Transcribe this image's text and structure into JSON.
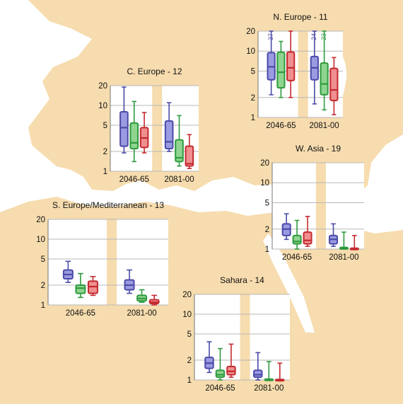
{
  "colors": {
    "ocean": "#ffffff",
    "land": "#f6dcae",
    "plot_bg": "#ffffff",
    "band": "#f6dcae",
    "grid": "#b8b8b8",
    "blue": "#4b4ba8",
    "blue_fill": "#9a9be0",
    "green": "#2e9b3f",
    "green_fill": "#8fd48f",
    "red": "#c42a2f",
    "red_fill": "#ef8f8f"
  },
  "chart_data": [
    {
      "id": "n-europe",
      "type": "box",
      "title": "N. Europe - 11",
      "y_scale": "log",
      "ylim": [
        1,
        20
      ],
      "yticks": [
        1,
        2,
        5,
        10,
        20
      ],
      "categories": [
        "2046-65",
        "2081-00"
      ],
      "series": [
        {
          "color": "blue",
          "boxes": [
            {
              "min": 2.2,
              "q1": 3.7,
              "median": 5.8,
              "q3": 9.5,
              "max": 20
            },
            {
              "min": 1.6,
              "q1": 3.7,
              "median": 5.6,
              "q3": 8.3,
              "max": 20
            }
          ]
        },
        {
          "color": "green",
          "boxes": [
            {
              "min": 2.0,
              "q1": 2.8,
              "median": 4.8,
              "q3": 9.6,
              "max": 14
            },
            {
              "min": 1.3,
              "q1": 2.2,
              "median": 3.2,
              "q3": 6.6,
              "max": 20
            }
          ]
        },
        {
          "color": "red",
          "boxes": [
            {
              "min": 2.0,
              "q1": 3.6,
              "median": 5.6,
              "q3": 9.7,
              "max": 20
            },
            {
              "min": 1.1,
              "q1": 1.8,
              "median": 2.6,
              "q3": 5.5,
              "max": 8
            }
          ]
        }
      ],
      "labels": [
        {
          "series": 0,
          "cat": 0,
          "text": "37"
        },
        {
          "series": 0,
          "cat": 1,
          "text": "24"
        },
        {
          "series": 1,
          "cat": 1,
          "text": "23"
        }
      ]
    },
    {
      "id": "c-europe",
      "type": "box",
      "title": "C. Europe - 12",
      "y_scale": "log",
      "ylim": [
        1,
        20
      ],
      "yticks": [
        1,
        2,
        5,
        10,
        20
      ],
      "categories": [
        "2046-65",
        "2081-00"
      ],
      "series": [
        {
          "color": "blue",
          "boxes": [
            {
              "min": 1.9,
              "q1": 2.4,
              "median": 4.6,
              "q3": 8.0,
              "max": 19
            },
            {
              "min": 2.0,
              "q1": 2.2,
              "median": 2.8,
              "q3": 5.8,
              "max": 11
            }
          ]
        },
        {
          "color": "green",
          "boxes": [
            {
              "min": 1.4,
              "q1": 2.2,
              "median": 2.7,
              "q3": 5.4,
              "max": 11.5
            },
            {
              "min": 1.2,
              "q1": 1.4,
              "median": 1.6,
              "q3": 3.0,
              "max": 7.0
            }
          ]
        },
        {
          "color": "red",
          "boxes": [
            {
              "min": 1.9,
              "q1": 2.3,
              "median": 3.2,
              "q3": 4.6,
              "max": 7.8
            },
            {
              "min": 1.1,
              "q1": 1.2,
              "median": 1.3,
              "q3": 2.4,
              "max": 3.6
            }
          ]
        }
      ]
    },
    {
      "id": "w-asia",
      "type": "box",
      "title": "W. Asia - 19",
      "y_scale": "log",
      "ylim": [
        1,
        20
      ],
      "yticks": [
        1,
        2,
        5,
        10,
        20
      ],
      "categories": [
        "2046-65",
        "2081-00"
      ],
      "series": [
        {
          "color": "blue",
          "boxes": [
            {
              "min": 1.4,
              "q1": 1.6,
              "median": 2.0,
              "q3": 2.4,
              "max": 3.4
            },
            {
              "min": 1.1,
              "q1": 1.2,
              "median": 1.4,
              "q3": 1.6,
              "max": 2.4
            }
          ]
        },
        {
          "color": "green",
          "boxes": [
            {
              "min": 1.0,
              "q1": 1.2,
              "median": 1.3,
              "q3": 1.6,
              "max": 2.7
            },
            {
              "min": 1.0,
              "q1": 1.0,
              "median": 1.02,
              "q3": 1.06,
              "max": 1.8
            }
          ]
        },
        {
          "color": "red",
          "boxes": [
            {
              "min": 1.1,
              "q1": 1.2,
              "median": 1.35,
              "q3": 1.8,
              "max": 3.1
            },
            {
              "min": 1.0,
              "q1": 1.0,
              "median": 1.01,
              "q3": 1.03,
              "max": 1.6
            }
          ]
        }
      ]
    },
    {
      "id": "s-europe",
      "type": "box",
      "title": "S. Europe/Mediterranean - 13",
      "y_scale": "log",
      "ylim": [
        1,
        20
      ],
      "yticks": [
        1,
        2,
        5,
        10,
        20
      ],
      "categories": [
        "2046-65",
        "2081-00"
      ],
      "series": [
        {
          "color": "blue",
          "boxes": [
            {
              "min": 2.2,
              "q1": 2.5,
              "median": 2.9,
              "q3": 3.4,
              "max": 4.6
            },
            {
              "min": 1.5,
              "q1": 1.7,
              "median": 2.0,
              "q3": 2.4,
              "max": 3.4
            }
          ]
        },
        {
          "color": "green",
          "boxes": [
            {
              "min": 1.3,
              "q1": 1.5,
              "median": 1.8,
              "q3": 2.0,
              "max": 3.0
            },
            {
              "min": 1.1,
              "q1": 1.15,
              "median": 1.25,
              "q3": 1.4,
              "max": 1.7
            }
          ]
        },
        {
          "color": "red",
          "boxes": [
            {
              "min": 1.4,
              "q1": 1.5,
              "median": 1.9,
              "q3": 2.3,
              "max": 2.7
            },
            {
              "min": 1.0,
              "q1": 1.05,
              "median": 1.1,
              "q3": 1.2,
              "max": 1.4
            }
          ]
        }
      ]
    },
    {
      "id": "sahara",
      "type": "box",
      "title": "Sahara - 14",
      "y_scale": "log",
      "ylim": [
        1,
        20
      ],
      "yticks": [
        1,
        2,
        5,
        10,
        20
      ],
      "categories": [
        "2046-65",
        "2081-00"
      ],
      "series": [
        {
          "color": "blue",
          "boxes": [
            {
              "min": 1.3,
              "q1": 1.5,
              "median": 1.8,
              "q3": 2.2,
              "max": 3.8
            },
            {
              "min": 1.0,
              "q1": 1.1,
              "median": 1.2,
              "q3": 1.4,
              "max": 2.6
            }
          ]
        },
        {
          "color": "green",
          "boxes": [
            {
              "min": 1.0,
              "q1": 1.1,
              "median": 1.2,
              "q3": 1.4,
              "max": 3.0
            },
            {
              "min": 1.0,
              "q1": 1.0,
              "median": 1.01,
              "q3": 1.03,
              "max": 1.9
            }
          ]
        },
        {
          "color": "red",
          "boxes": [
            {
              "min": 1.1,
              "q1": 1.2,
              "median": 1.35,
              "q3": 1.6,
              "max": 3.5
            },
            {
              "min": 1.0,
              "q1": 1.0,
              "median": 1.01,
              "q3": 1.02,
              "max": 1.8
            }
          ]
        }
      ]
    }
  ]
}
